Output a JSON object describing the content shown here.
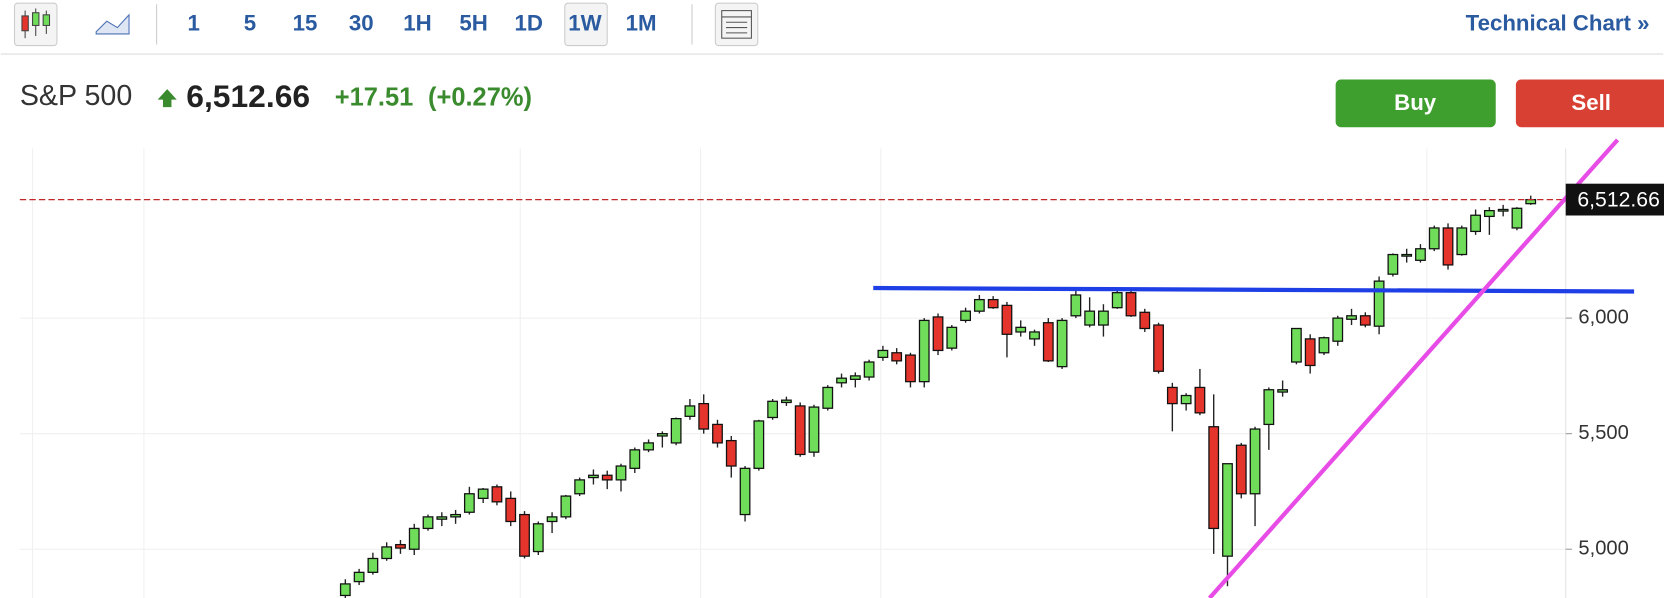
{
  "toolbar": {
    "intervals": [
      "1",
      "5",
      "15",
      "30",
      "1H",
      "5H",
      "1D",
      "1W",
      "1M"
    ],
    "selected": "1W",
    "link": "Technical Chart »"
  },
  "header": {
    "name": "S&P 500",
    "change": "+17.51",
    "change_pct": "(+0.27%)",
    "buy": "Buy",
    "sell": "Sell"
  },
  "chart_data": {
    "type": "candlestick",
    "up_color": "#6fdc5a",
    "down_color": "#e4342b",
    "ylim": [
      4789,
      6734
    ],
    "yticks": [
      {
        "value": 5000,
        "label": "5,000"
      },
      {
        "value": 5500,
        "label": "5,500"
      },
      {
        "value": 6000,
        "label": "6,000"
      }
    ],
    "grid": true,
    "last_price": {
      "value": 6512.66,
      "label": "6,512.66"
    },
    "ohlc": [
      [
        4800,
        4870,
        4785,
        4850
      ],
      [
        4860,
        4915,
        4845,
        4900
      ],
      [
        4900,
        4985,
        4890,
        4960
      ],
      [
        4960,
        5030,
        4950,
        5010
      ],
      [
        5020,
        5040,
        4980,
        5005
      ],
      [
        5000,
        5110,
        4975,
        5090
      ],
      [
        5090,
        5150,
        5080,
        5140
      ],
      [
        5130,
        5160,
        5100,
        5140
      ],
      [
        5140,
        5170,
        5110,
        5150
      ],
      [
        5160,
        5270,
        5150,
        5240
      ],
      [
        5220,
        5265,
        5200,
        5260
      ],
      [
        5270,
        5280,
        5190,
        5205
      ],
      [
        5220,
        5250,
        5100,
        5120
      ],
      [
        5150,
        5165,
        4960,
        4970
      ],
      [
        4990,
        5120,
        4975,
        5110
      ],
      [
        5120,
        5160,
        5070,
        5140
      ],
      [
        5140,
        5235,
        5130,
        5230
      ],
      [
        5240,
        5310,
        5230,
        5300
      ],
      [
        5310,
        5345,
        5280,
        5320
      ],
      [
        5320,
        5340,
        5260,
        5300
      ],
      [
        5300,
        5370,
        5250,
        5360
      ],
      [
        5350,
        5440,
        5330,
        5430
      ],
      [
        5430,
        5475,
        5420,
        5460
      ],
      [
        5490,
        5510,
        5440,
        5500
      ],
      [
        5460,
        5570,
        5450,
        5565
      ],
      [
        5575,
        5650,
        5560,
        5620
      ],
      [
        5630,
        5670,
        5500,
        5520
      ],
      [
        5540,
        5560,
        5440,
        5460
      ],
      [
        5470,
        5490,
        5310,
        5360
      ],
      [
        5150,
        5360,
        5120,
        5350
      ],
      [
        5350,
        5560,
        5340,
        5555
      ],
      [
        5570,
        5650,
        5560,
        5640
      ],
      [
        5635,
        5660,
        5620,
        5645
      ],
      [
        5620,
        5635,
        5400,
        5410
      ],
      [
        5420,
        5625,
        5400,
        5615
      ],
      [
        5610,
        5710,
        5600,
        5700
      ],
      [
        5720,
        5760,
        5700,
        5740
      ],
      [
        5735,
        5765,
        5700,
        5750
      ],
      [
        5745,
        5820,
        5730,
        5810
      ],
      [
        5830,
        5880,
        5815,
        5860
      ],
      [
        5850,
        5870,
        5800,
        5815
      ],
      [
        5840,
        5850,
        5700,
        5725
      ],
      [
        5725,
        6000,
        5700,
        5990
      ],
      [
        6005,
        6020,
        5840,
        5860
      ],
      [
        5870,
        5970,
        5860,
        5960
      ],
      [
        5990,
        6045,
        5980,
        6030
      ],
      [
        6030,
        6100,
        6020,
        6080
      ],
      [
        6080,
        6095,
        6040,
        6045
      ],
      [
        6055,
        6070,
        5830,
        5930
      ],
      [
        5940,
        5990,
        5920,
        5960
      ],
      [
        5910,
        5950,
        5880,
        5940
      ],
      [
        5980,
        6000,
        5810,
        5815
      ],
      [
        5790,
        6000,
        5780,
        5990
      ],
      [
        6010,
        6120,
        6000,
        6100
      ],
      [
        5970,
        6090,
        5960,
        6030
      ],
      [
        5970,
        6060,
        5920,
        6030
      ],
      [
        6045,
        6125,
        6040,
        6110
      ],
      [
        6110,
        6130,
        6005,
        6010
      ],
      [
        6025,
        6040,
        5940,
        5955
      ],
      [
        5970,
        5980,
        5760,
        5770
      ],
      [
        5700,
        5720,
        5510,
        5630
      ],
      [
        5630,
        5675,
        5600,
        5665
      ],
      [
        5700,
        5780,
        5580,
        5590
      ],
      [
        5530,
        5670,
        4980,
        5090
      ],
      [
        4970,
        5370,
        4840,
        5370
      ],
      [
        5450,
        5460,
        5220,
        5240
      ],
      [
        5240,
        5530,
        5100,
        5520
      ],
      [
        5540,
        5700,
        5430,
        5690
      ],
      [
        5680,
        5730,
        5660,
        5690
      ],
      [
        5810,
        5955,
        5800,
        5955
      ],
      [
        5910,
        5930,
        5760,
        5795
      ],
      [
        5850,
        5920,
        5840,
        5915
      ],
      [
        5900,
        6010,
        5880,
        6000
      ],
      [
        5995,
        6040,
        5970,
        6010
      ],
      [
        6010,
        6025,
        5960,
        5970
      ],
      [
        5965,
        6180,
        5930,
        6160
      ],
      [
        6190,
        6280,
        6180,
        6275
      ],
      [
        6270,
        6300,
        6240,
        6275
      ],
      [
        6250,
        6320,
        6240,
        6300
      ],
      [
        6300,
        6400,
        6290,
        6390
      ],
      [
        6390,
        6410,
        6210,
        6230
      ],
      [
        6275,
        6400,
        6270,
        6390
      ],
      [
        6375,
        6470,
        6360,
        6445
      ],
      [
        6440,
        6480,
        6360,
        6465
      ],
      [
        6465,
        6490,
        6440,
        6470
      ],
      [
        6390,
        6480,
        6380,
        6475
      ],
      [
        6495,
        6530,
        6490,
        6512.66
      ]
    ],
    "trendlines": [
      {
        "color": "#1f3fe6",
        "from": [
          38.3,
          6130
        ],
        "to": [
          93.5,
          6115
        ]
      },
      {
        "color": "#e84ce6",
        "from": [
          62.7,
          4789
        ],
        "to": [
          92.3,
          6771
        ]
      }
    ]
  }
}
